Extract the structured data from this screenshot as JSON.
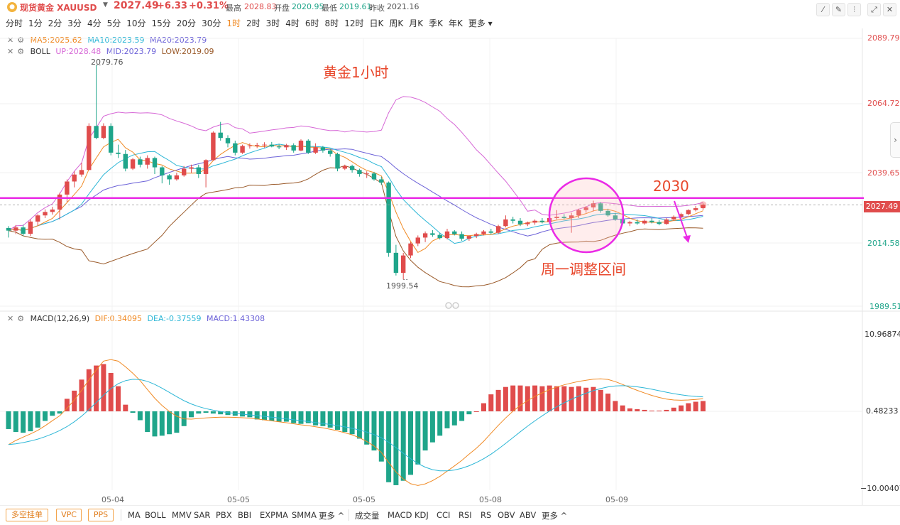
{
  "header": {
    "name": "现货黄金 XAUUSD",
    "price": "2027.49",
    "change": "+6.33",
    "change_pct": "+0.31%",
    "high_label": "最高",
    "high": "2028.83",
    "open_label": "开盘",
    "open": "2020.95",
    "low_label": "最低",
    "low": "2019.61",
    "prev_label": "昨收",
    "prev": "2021.16"
  },
  "timeframes": [
    "分时",
    "1分",
    "2分",
    "3分",
    "4分",
    "5分",
    "10分",
    "15分",
    "20分",
    "30分",
    "1时",
    "2时",
    "3时",
    "4时",
    "6时",
    "8时",
    "12时",
    "日K",
    "周K",
    "月K",
    "季K",
    "年K",
    "更多"
  ],
  "active_timeframe": "1时",
  "indicators": {
    "ma": {
      "ma5": "MA5:2025.62",
      "ma10": "MA10:2023.59",
      "ma20": "MA20:2023.79"
    },
    "boll": {
      "name": "BOLL",
      "up": "UP:2028.48",
      "mid": "MID:2023.79",
      "low": "LOW:2019.09"
    },
    "macd": {
      "name": "MACD(12,26,9)",
      "dif": "DIF:0.34095",
      "dea": "DEA:-0.37559",
      "macd": "MACD:1.43308"
    }
  },
  "price_axis": [
    "2089.79",
    "2064.72",
    "2039.65",
    "2014.58",
    "1989.51"
  ],
  "current_price_tag": "2027.49",
  "macd_axis": [
    "10.96874",
    "0.48233",
    "−10.00407"
  ],
  "date_labels": [
    "05-04",
    "05-05",
    "05-05",
    "05-08",
    "05-09"
  ],
  "annotations": {
    "title": "黄金1小时",
    "level": "2030",
    "range_note": "周一调整区间",
    "high_mark": "2079.76",
    "low_mark": "1999.54"
  },
  "bottom_tags": [
    "多空挂单",
    "VPC",
    "PPS"
  ],
  "bottom_main_indicators": [
    "MA",
    "BOLL",
    "MMV",
    "SAR",
    "PBX",
    "BBI",
    "EXPMA",
    "SMMA",
    "更多 ^"
  ],
  "bottom_sub_indicators": [
    "成交量",
    "MACD",
    "KDJ",
    "CCI",
    "RSI",
    "RS",
    "OBV",
    "ABV",
    "更多 ^"
  ],
  "colors": {
    "up": "#e04c4c",
    "down": "#1fa58a",
    "accent": "#f08a24",
    "level_line": "#ea2ae6",
    "annotation": "#e8472b",
    "ma5": "#f08a24",
    "ma10": "#2bb6d6",
    "ma20": "#6c62d8",
    "boll_up": "#d667d6",
    "boll_low": "#9a5a2a"
  },
  "chart_data": {
    "type": "candlestick",
    "symbol": "XAUUSD",
    "ylim": [
      1989.51,
      2089.79
    ],
    "level": 2030,
    "candles_ohlc": [
      [
        2018.8,
        2019.5,
        2015.2,
        2017.8
      ],
      [
        2017.8,
        2019.9,
        2016.5,
        2019.0
      ],
      [
        2019.0,
        2020.0,
        2015.8,
        2016.6
      ],
      [
        2016.6,
        2022.0,
        2015.8,
        2021.2
      ],
      [
        2021.2,
        2024.0,
        2019.7,
        2023.5
      ],
      [
        2023.5,
        2025.8,
        2022.5,
        2024.8
      ],
      [
        2024.8,
        2026.7,
        2023.8,
        2025.7
      ],
      [
        2025.7,
        2032.0,
        2022.0,
        2031.3
      ],
      [
        2031.3,
        2037.0,
        2028.5,
        2036.2
      ],
      [
        2036.2,
        2040.0,
        2034.0,
        2038.8
      ],
      [
        2038.8,
        2043.2,
        2038.0,
        2040.5
      ],
      [
        2040.5,
        2058.0,
        2040.5,
        2057.0
      ],
      [
        2057.0,
        2079.8,
        2052.0,
        2052.5
      ],
      [
        2052.5,
        2058.0,
        2052.0,
        2057.0
      ],
      [
        2057.0,
        2058.0,
        2046.0,
        2047.0
      ],
      [
        2047.0,
        2050.0,
        2045.0,
        2046.5
      ],
      [
        2046.5,
        2048.0,
        2040.0,
        2041.0
      ],
      [
        2041.0,
        2045.0,
        2040.5,
        2044.5
      ],
      [
        2044.5,
        2045.5,
        2041.5,
        2042.5
      ],
      [
        2042.5,
        2046.0,
        2041.0,
        2045.0
      ],
      [
        2045.0,
        2045.5,
        2039.0,
        2041.5
      ],
      [
        2041.5,
        2042.0,
        2035.5,
        2038.5
      ],
      [
        2038.5,
        2039.0,
        2035.0,
        2037.0
      ],
      [
        2037.0,
        2039.5,
        2036.5,
        2038.5
      ],
      [
        2038.5,
        2042.0,
        2038.0,
        2041.0
      ],
      [
        2041.0,
        2042.5,
        2039.5,
        2041.5
      ],
      [
        2041.5,
        2042.5,
        2037.5,
        2039.0
      ],
      [
        2039.0,
        2044.5,
        2034.0,
        2044.2
      ],
      [
        2044.2,
        2055.0,
        2044.0,
        2054.5
      ],
      [
        2054.5,
        2058.5,
        2051.5,
        2052.5
      ],
      [
        2052.5,
        2053.5,
        2049.0,
        2050.5
      ],
      [
        2050.5,
        2051.5,
        2046.0,
        2047.0
      ],
      [
        2047.0,
        2050.0,
        2046.5,
        2049.5
      ],
      [
        2049.5,
        2050.5,
        2048.5,
        2049.7
      ],
      [
        2049.7,
        2050.7,
        2048.7,
        2049.9
      ],
      [
        2049.9,
        2050.9,
        2048.9,
        2050.0
      ],
      [
        2050.0,
        2051.0,
        2049.0,
        2049.3
      ],
      [
        2049.3,
        2050.3,
        2048.3,
        2049.0
      ],
      [
        2049.0,
        2050.3,
        2048.0,
        2049.8
      ],
      [
        2049.8,
        2050.5,
        2047.0,
        2047.8
      ],
      [
        2047.8,
        2052.0,
        2047.5,
        2051.5
      ],
      [
        2051.5,
        2052.0,
        2046.5,
        2047.0
      ],
      [
        2047.0,
        2050.5,
        2046.5,
        2049.0
      ],
      [
        2049.0,
        2049.5,
        2047.0,
        2047.8
      ],
      [
        2047.8,
        2048.5,
        2045.5,
        2046.5
      ],
      [
        2046.5,
        2047.0,
        2040.0,
        2041.0
      ],
      [
        2041.0,
        2042.5,
        2040.5,
        2042.0
      ],
      [
        2042.0,
        2042.5,
        2039.5,
        2040.5
      ],
      [
        2040.5,
        2041.0,
        2038.0,
        2039.0
      ],
      [
        2039.0,
        2040.0,
        2037.5,
        2039.2
      ],
      [
        2039.2,
        2039.8,
        2036.5,
        2037.0
      ],
      [
        2037.0,
        2038.0,
        2035.0,
        2035.8
      ],
      [
        2035.8,
        2036.2,
        2008.0,
        2009.5
      ],
      [
        2009.5,
        2012.5,
        2001.0,
        2002.0
      ],
      [
        2002.0,
        2009.5,
        1999.5,
        2008.5
      ],
      [
        2008.5,
        2013.5,
        2007.5,
        2013.0
      ],
      [
        2013.0,
        2016.0,
        2012.0,
        2015.2
      ],
      [
        2015.2,
        2017.5,
        2013.5,
        2016.8
      ],
      [
        2016.8,
        2018.0,
        2015.5,
        2016.2
      ],
      [
        2016.2,
        2017.0,
        2014.5,
        2015.0
      ],
      [
        2015.0,
        2018.5,
        2014.5,
        2017.5
      ],
      [
        2017.5,
        2018.0,
        2016.0,
        2016.5
      ],
      [
        2016.5,
        2017.5,
        2014.0,
        2014.8
      ],
      [
        2014.8,
        2016.0,
        2014.0,
        2015.8
      ],
      [
        2015.8,
        2017.0,
        2015.0,
        2016.5
      ],
      [
        2016.5,
        2018.0,
        2016.0,
        2017.5
      ],
      [
        2017.5,
        2018.5,
        2016.5,
        2017.0
      ],
      [
        2017.0,
        2020.0,
        2016.5,
        2019.5
      ],
      [
        2019.5,
        2023.5,
        2019.0,
        2022.0
      ],
      [
        2022.0,
        2023.0,
        2020.5,
        2021.5
      ],
      [
        2021.5,
        2022.5,
        2019.5,
        2020.2
      ],
      [
        2020.2,
        2021.2,
        2019.5,
        2020.8
      ],
      [
        2020.8,
        2022.0,
        2020.0,
        2021.5
      ],
      [
        2021.5,
        2022.5,
        2020.5,
        2021.0
      ],
      [
        2021.0,
        2023.0,
        2020.5,
        2022.5
      ],
      [
        2022.5,
        2025.5,
        2022.0,
        2023.0
      ],
      [
        2023.0,
        2024.0,
        2022.0,
        2022.5
      ],
      [
        2022.5,
        2024.5,
        2017.0,
        2023.5
      ],
      [
        2023.5,
        2026.0,
        2022.5,
        2025.5
      ],
      [
        2025.5,
        2027.0,
        2024.5,
        2026.5
      ],
      [
        2026.5,
        2029.0,
        2025.0,
        2028.0
      ],
      [
        2028.0,
        2028.5,
        2024.5,
        2025.2
      ],
      [
        2025.2,
        2026.0,
        2023.0,
        2023.5
      ],
      [
        2023.5,
        2024.5,
        2021.5,
        2022.0
      ],
      [
        2022.0,
        2023.0,
        2020.0,
        2020.5
      ],
      [
        2020.5,
        2021.5,
        2019.5,
        2021.0
      ],
      [
        2021.0,
        2022.0,
        2020.0,
        2020.5
      ],
      [
        2020.5,
        2022.0,
        2020.0,
        2021.5
      ],
      [
        2021.5,
        2022.5,
        2020.5,
        2021.0
      ],
      [
        2021.0,
        2021.8,
        2019.8,
        2020.3
      ],
      [
        2020.3,
        2022.5,
        2020.0,
        2022.0
      ],
      [
        2022.0,
        2023.5,
        2021.5,
        2023.0
      ],
      [
        2023.0,
        2024.5,
        2022.5,
        2024.0
      ],
      [
        2024.0,
        2025.8,
        2023.5,
        2025.5
      ],
      [
        2025.5,
        2027.0,
        2025.0,
        2026.2
      ],
      [
        2026.2,
        2028.0,
        2025.5,
        2027.5
      ]
    ],
    "macd_hist": [
      -2.4,
      -2.8,
      -2.9,
      -2.7,
      -2.2,
      -1.3,
      -0.6,
      -0.3,
      1.7,
      2.8,
      4.3,
      5.7,
      6.2,
      6.4,
      5.2,
      3.4,
      0.9,
      -0.2,
      -1.2,
      -2.8,
      -3.4,
      -3.3,
      -3.1,
      -2.9,
      -2.0,
      -0.8,
      -0.3,
      -0.2,
      -0.3,
      -0.4,
      -0.5,
      -0.6,
      -0.7,
      -0.8,
      -1.1,
      -1.2,
      -1.3,
      -1.4,
      -1.4,
      -1.6,
      -1.7,
      -1.6,
      -1.9,
      -2.0,
      -2.2,
      -2.5,
      -2.8,
      -3.1,
      -3.7,
      -4.5,
      -5.3,
      -6.8,
      -9.6,
      -10.0,
      -9.4,
      -8.6,
      -7.2,
      -5.3,
      -4.2,
      -3.3,
      -2.3,
      -1.9,
      -1.3,
      -0.4,
      0.0,
      1.1,
      2.3,
      2.9,
      3.3,
      3.5,
      3.5,
      3.4,
      3.5,
      3.4,
      3.5,
      3.4,
      3.4,
      3.3,
      3.4,
      3.2,
      3.3,
      2.9,
      2.4,
      1.4,
      0.8,
      0.4,
      0.3,
      0.2,
      0.1,
      0.1,
      0.2,
      0.5,
      0.8,
      1.1,
      1.3,
      1.4
    ],
    "ma5_label": "MA5",
    "ma10_label": "MA10",
    "ma20_label": "MA20"
  }
}
